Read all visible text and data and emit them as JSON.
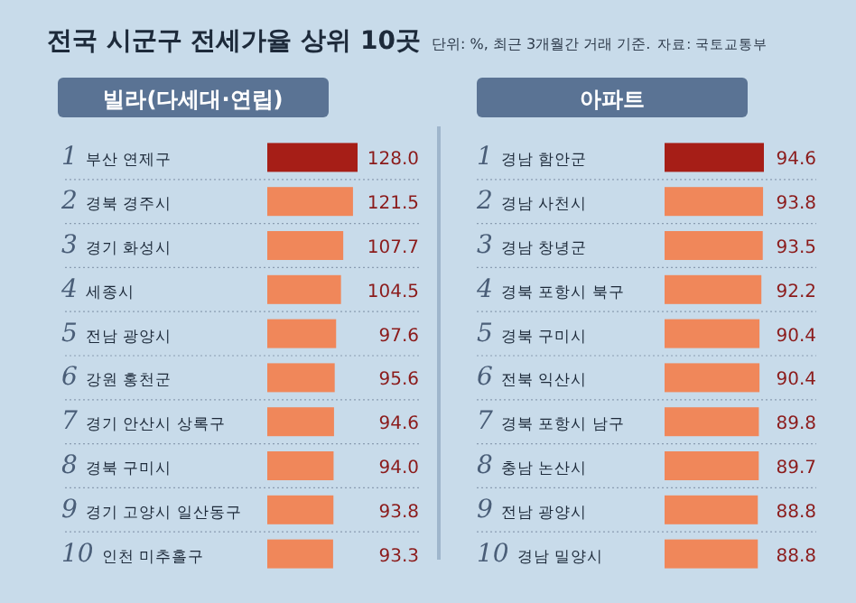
{
  "chart_data": [
    {
      "type": "other",
      "title": "전국 시군구 전세가율 상위 10곳",
      "subtitle": "단위: %, 최근 3개월간 거래 기준.",
      "annotations": [
        "자료: 국토교통부"
      ]
    },
    {
      "type": "bar",
      "orientation": "horizontal",
      "title": "빌라(다세대·연립)",
      "categories": [
        "1 부산 연제구",
        "2 경북 경주시",
        "3 경기 화성시",
        "4 세종시",
        "5 전남 광양시",
        "6 강원 홍천군",
        "7 경기 안산시 상록구",
        "8 경북 구미시",
        "9 경기 고양시 일산동구",
        "10 인천 미추홀구"
      ],
      "values": [
        128.0,
        121.5,
        107.7,
        104.5,
        97.6,
        95.6,
        94.6,
        94.0,
        93.8,
        93.3
      ],
      "value_labels": [
        "128.0",
        "121.5",
        "107.7",
        "104.5",
        "97.6",
        "95.6",
        "94.6",
        "94.0",
        "93.8",
        "93.3"
      ],
      "colors": [
        "#a61e17",
        "#f0875a",
        "#f0875a",
        "#f0875a",
        "#f0875a",
        "#f0875a",
        "#f0875a",
        "#f0875a",
        "#f0875a",
        "#f0875a"
      ]
    },
    {
      "type": "bar",
      "orientation": "horizontal",
      "title": "아파트",
      "data_labels": true,
      "categories": [
        "1 경남 함안군",
        "2 경남 사천시",
        "3 경남 창녕군",
        "4 경북 포항시 북구",
        "5 경북 구미시",
        "6 전북 익산시",
        "7 경북 포항시 남구",
        "8 충남 논산시",
        "9 전남 광양시",
        "10 경남 밀양시"
      ],
      "values": [
        94.6,
        93.8,
        93.5,
        92.2,
        90.4,
        90.4,
        89.8,
        89.7,
        88.8,
        88.8
      ],
      "colors": [
        "#a61e17",
        "#f0875a",
        "#f0875a",
        "#f0875a",
        "#f0875a",
        "#f0875a",
        "#f0875a",
        "#f0875a",
        "#f0875a",
        "#f0875a"
      ]
    }
  ]
}
